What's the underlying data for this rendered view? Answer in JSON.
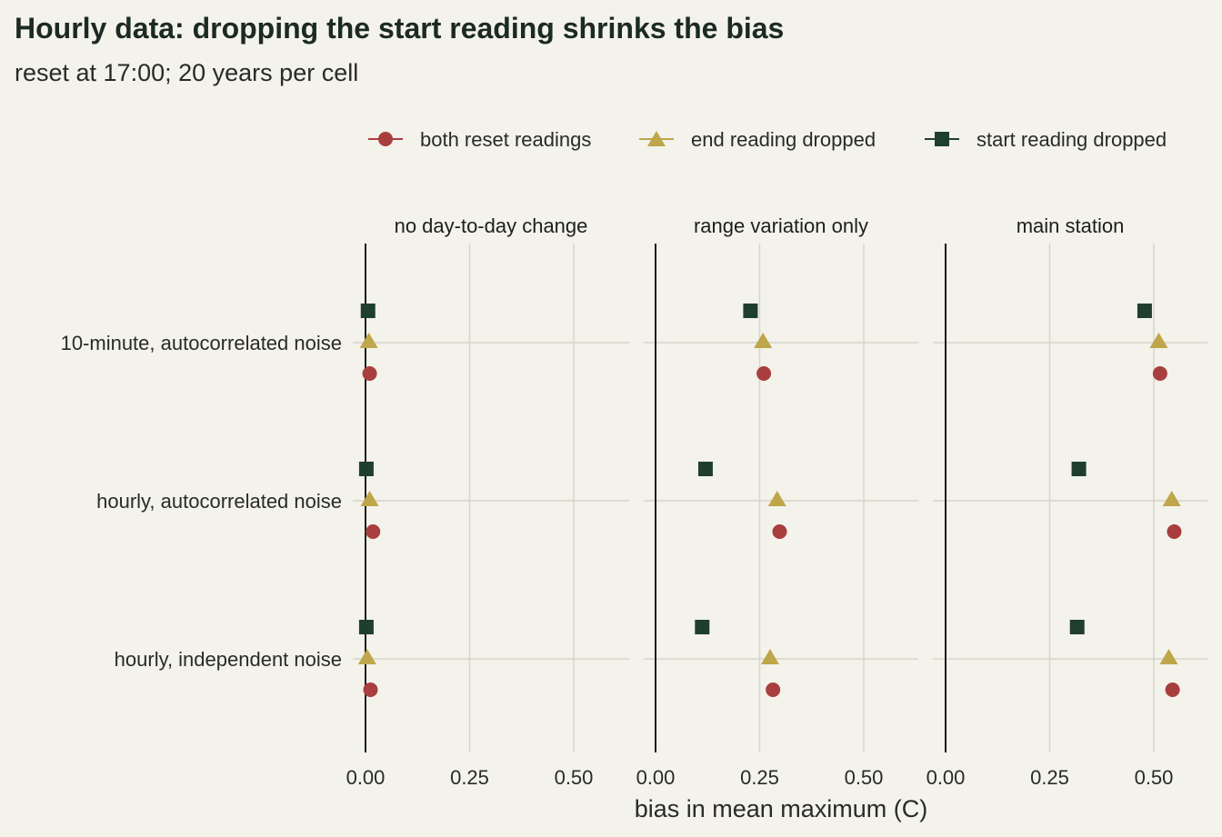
{
  "chart_data": {
    "type": "scatter",
    "title": "Hourly data: dropping the start reading shrinks the bias",
    "subtitle": "reset at 17:00; 20 years per cell",
    "xlabel": "bias in mean maximum (C)",
    "ylabel": "",
    "xlim": [
      0,
      0.6
    ],
    "x_ticks": [
      "0.00",
      "0.25",
      "0.50"
    ],
    "x_tick_values": [
      0,
      0.25,
      0.5
    ],
    "grid": true,
    "legend_position": "top-right",
    "categories": [
      "10-minute, autocorrelated noise",
      "hourly, autocorrelated noise",
      "hourly, independent noise"
    ],
    "facets": [
      "no day-to-day change",
      "range variation only",
      "main station"
    ],
    "series": [
      {
        "name": "both reset readings",
        "shape": "circle",
        "color": "#a83e3e",
        "values": [
          [
            0.01,
            0.26,
            0.515
          ],
          [
            0.018,
            0.298,
            0.549
          ],
          [
            0.012,
            0.282,
            0.545
          ]
        ]
      },
      {
        "name": "end reading dropped",
        "shape": "triangle",
        "color": "#bfa64a",
        "values": [
          [
            0.008,
            0.258,
            0.512
          ],
          [
            0.01,
            0.292,
            0.543
          ],
          [
            0.004,
            0.275,
            0.536
          ]
        ]
      },
      {
        "name": "start reading dropped",
        "shape": "square",
        "color": "#1f3f2c",
        "values": [
          [
            0.006,
            0.228,
            0.478
          ],
          [
            0.002,
            0.12,
            0.32
          ],
          [
            0.002,
            0.112,
            0.316
          ]
        ]
      }
    ]
  }
}
